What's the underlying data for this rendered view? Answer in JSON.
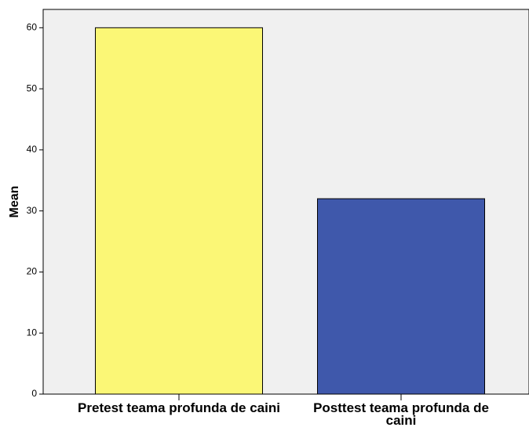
{
  "chart_data": {
    "type": "bar",
    "y_label": "Mean",
    "categories": [
      "Pretest teama profunda de caini",
      "Posttest teama profunda de caini"
    ],
    "values": [
      60,
      32
    ],
    "colors": [
      "#fbf776",
      "#3f58ab"
    ],
    "ylim": [
      0,
      63
    ],
    "yticks": [
      0,
      10,
      20,
      30,
      40,
      50,
      60
    ],
    "grid": false
  }
}
